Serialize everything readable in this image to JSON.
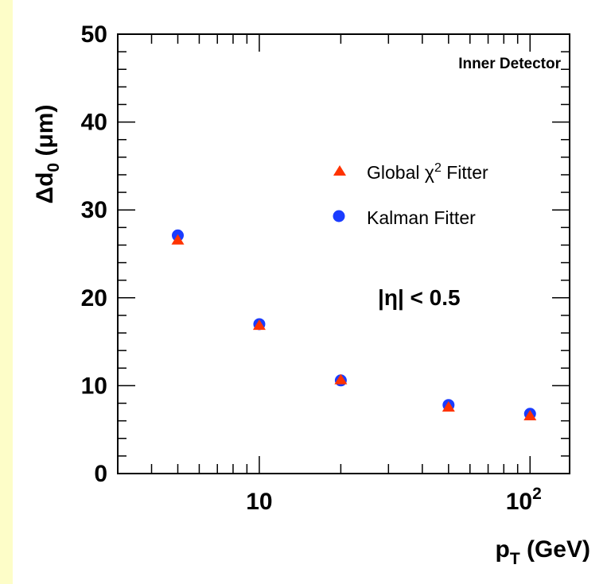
{
  "chart_data": {
    "type": "scatter",
    "annotation": "Inner Detector",
    "cut_label": "|η| < 0.5",
    "xlabel": {
      "main": "p",
      "sub": "T",
      "unit": " (GeV)"
    },
    "ylabel": {
      "main": "Δd",
      "sub": "0",
      "unit": " (μm)"
    },
    "x_scale": "log",
    "xlim": [
      3.0,
      140
    ],
    "ylim": [
      0,
      50
    ],
    "x_ticks": [
      {
        "value": 10,
        "label": "10"
      },
      {
        "value": 100,
        "label": "10",
        "sup": "2"
      }
    ],
    "y_ticks": [
      {
        "value": 0,
        "label": "0"
      },
      {
        "value": 10,
        "label": "10"
      },
      {
        "value": 20,
        "label": "20"
      },
      {
        "value": 30,
        "label": "30"
      },
      {
        "value": 40,
        "label": "40"
      },
      {
        "value": 50,
        "label": "50"
      }
    ],
    "series": [
      {
        "name": "Global χ² Fitter",
        "name_main": "Global ",
        "name_chi": "χ",
        "name_sup": "2",
        "name_tail": " Fitter",
        "marker": "triangle",
        "color": "#ff3300",
        "x": [
          5,
          10,
          20,
          50,
          100
        ],
        "y": [
          26.6,
          16.9,
          10.7,
          7.6,
          6.6
        ]
      },
      {
        "name": "Kalman Fitter",
        "marker": "circle",
        "color": "#1a3cff",
        "x": [
          5,
          10,
          20,
          50,
          100
        ],
        "y": [
          27.1,
          17.0,
          10.6,
          7.8,
          6.8
        ]
      }
    ],
    "legend_position": "top-right",
    "grid": false
  }
}
